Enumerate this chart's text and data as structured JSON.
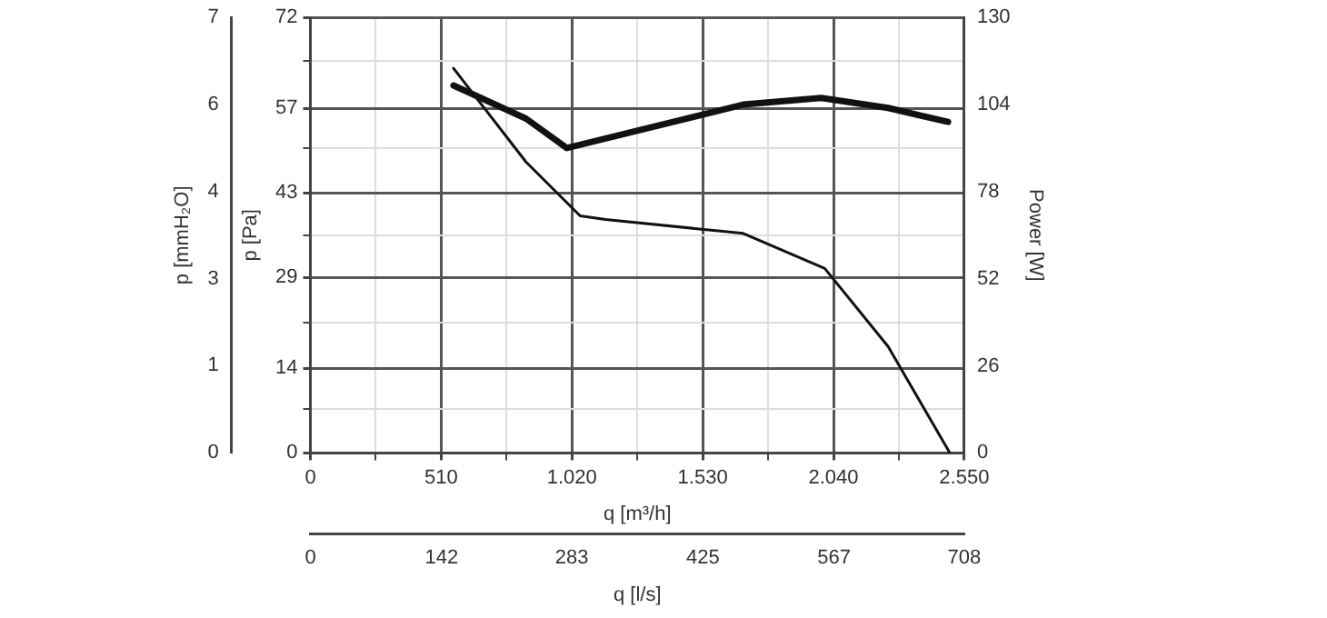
{
  "chart_data": {
    "type": "line",
    "xlabel": "q [m³/h]",
    "ylabel": "p [Pa]",
    "y2label": "Power [W]",
    "y3label": "p [mmH₂O]",
    "x2label": "q [l/s]",
    "xlim": [
      0,
      2550
    ],
    "xticks": [
      0,
      {
        "value": 255,
        "label": null
      },
      510,
      {
        "value": 765,
        "label": null
      },
      {
        "value": 1020,
        "label": "1.020"
      },
      {
        "value": 1275,
        "label": null
      },
      {
        "value": 1530,
        "label": "1.530"
      },
      {
        "value": 1785,
        "label": null
      },
      {
        "value": 2040,
        "label": "2.040"
      },
      {
        "value": 2295,
        "label": null
      },
      {
        "value": 2550,
        "label": "2.550"
      }
    ],
    "ylim": [
      0,
      72
    ],
    "yticks": [
      0,
      {
        "value": 7.2,
        "label": null
      },
      14,
      {
        "value": 21.6,
        "label": null
      },
      29,
      {
        "value": 36,
        "label": null
      },
      43,
      {
        "value": 50.4,
        "label": null
      },
      57,
      {
        "value": 64.8,
        "label": null
      },
      72
    ],
    "y2lim": [
      0,
      130
    ],
    "y2ticks": [
      0,
      26,
      52,
      78,
      104,
      130
    ],
    "y3lim": [
      0,
      7.34
    ],
    "y3ticks": [
      0,
      {
        "value": 1.47,
        "label": "1"
      },
      {
        "value": 2.94,
        "label": "3"
      },
      {
        "value": 4.41,
        "label": "4"
      },
      {
        "value": 5.87,
        "label": "6"
      },
      {
        "value": 7.34,
        "label": "7"
      }
    ],
    "x2lim": [
      0,
      708
    ],
    "x2ticks": [
      0,
      142,
      283,
      425,
      567,
      708
    ],
    "grid": true,
    "legend": false,
    "marker": "none",
    "line_style": "solid",
    "series": [
      {
        "color": "#111111",
        "x": [
          558,
          841,
          1052,
          1151,
          1688,
          2006,
          2253,
          2494
        ],
        "values": [
          63.6,
          48.1,
          39.2,
          38.6,
          36.3,
          30.5,
          17.6,
          0
        ]
      },
      {
        "color": "#111111",
        "axis": "y2",
        "x": [
          558,
          841,
          1000,
          1688,
          1992,
          2253,
          2487
        ],
        "values": [
          109.7,
          99.8,
          91,
          104,
          106,
          103,
          98.8
        ]
      }
    ]
  }
}
